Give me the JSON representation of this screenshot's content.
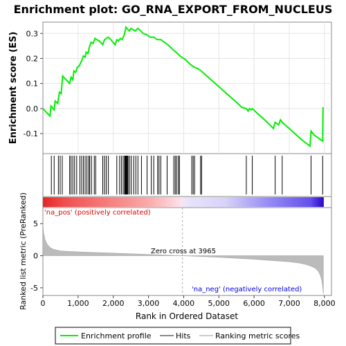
{
  "chart_data": {
    "type": "line",
    "title": "Enrichment plot: GO_RNA_EXPORT_FROM_NUCLEUS",
    "xlabel": "Rank in Ordered Dataset",
    "ylabel_top": "Enrichment score (ES)",
    "ylabel_bottom": "Ranked list metric (PreRanked)",
    "xlim": [
      0,
      8200
    ],
    "x_ticks": [
      0,
      1000,
      2000,
      3000,
      4000,
      5000,
      6000,
      7000,
      8000
    ],
    "x_tick_labels": [
      "0",
      "1,000",
      "2,000",
      "3,000",
      "4,000",
      "5,000",
      "6,000",
      "7,000",
      "8,000"
    ],
    "es_ylim": [
      -0.18,
      0.345
    ],
    "es_ticks": [
      -0.1,
      0.0,
      0.1,
      0.2,
      0.3
    ],
    "es_tick_labels": [
      "-0.1",
      "0.0",
      "0.1",
      "0.2",
      "0.3"
    ],
    "metric_ylim": [
      -6.2,
      7.5
    ],
    "metric_ticks": [
      -5,
      0,
      5
    ],
    "metric_tick_labels": [
      "-5",
      "0",
      "5"
    ],
    "colors": {
      "enrichment_line": "#00ee00",
      "hits": "#000000",
      "metric_fill": "#bbbbbb",
      "zero_line": "#aaaaaa",
      "pos_label": "#dd0000",
      "neg_label": "#0000dd"
    },
    "series": [
      {
        "name": "Enrichment profile",
        "x": [
          0,
          200,
          230,
          320,
          350,
          420,
          470,
          520,
          560,
          760,
          800,
          850,
          880,
          930,
          980,
          1030,
          1100,
          1150,
          1200,
          1230,
          1280,
          1320,
          1370,
          1430,
          1480,
          1530,
          1600,
          1700,
          1750,
          1800,
          1850,
          1900,
          2050,
          2100,
          2150,
          2200,
          2250,
          2300,
          2330,
          2360,
          2390,
          2420,
          2460,
          2500,
          2560,
          2620,
          2700,
          2780,
          2850,
          2950,
          3050,
          3150,
          3250,
          3350,
          3450,
          3550,
          3700,
          3900,
          4050,
          4200,
          4300,
          4400,
          4500,
          4700,
          4900,
          5100,
          5300,
          5500,
          5650,
          5780,
          5830,
          5870,
          5920,
          5950,
          6100,
          6300,
          6450,
          6550,
          6600,
          6700,
          6750,
          6800,
          7000,
          7200,
          7400,
          7590,
          7620,
          7700,
          7850,
          7950,
          7960
        ],
        "y": [
          0.0,
          -0.03,
          0.01,
          -0.005,
          0.03,
          0.02,
          0.065,
          0.06,
          0.13,
          0.1,
          0.125,
          0.115,
          0.15,
          0.145,
          0.165,
          0.17,
          0.19,
          0.21,
          0.205,
          0.225,
          0.22,
          0.245,
          0.265,
          0.26,
          0.28,
          0.275,
          0.27,
          0.255,
          0.275,
          0.28,
          0.285,
          0.28,
          0.255,
          0.275,
          0.27,
          0.28,
          0.275,
          0.29,
          0.305,
          0.325,
          0.32,
          0.315,
          0.31,
          0.32,
          0.315,
          0.31,
          0.32,
          0.31,
          0.3,
          0.295,
          0.285,
          0.285,
          0.275,
          0.275,
          0.265,
          0.255,
          0.235,
          0.21,
          0.195,
          0.175,
          0.165,
          0.16,
          0.15,
          0.125,
          0.1,
          0.075,
          0.05,
          0.025,
          0.005,
          0.0,
          -0.01,
          0.0,
          -0.005,
          0.0,
          -0.02,
          -0.045,
          -0.065,
          -0.08,
          -0.055,
          -0.065,
          -0.045,
          -0.055,
          -0.08,
          -0.105,
          -0.13,
          -0.15,
          -0.09,
          -0.105,
          -0.12,
          -0.13,
          0.005
        ]
      }
    ],
    "hits": [
      240,
      320,
      440,
      490,
      550,
      760,
      800,
      850,
      900,
      960,
      1050,
      1100,
      1150,
      1200,
      1250,
      1300,
      1330,
      1380,
      1460,
      1500,
      1700,
      1750,
      1800,
      1860,
      2100,
      2180,
      2230,
      2280,
      2320,
      2340,
      2360,
      2380,
      2400,
      2420,
      2460,
      2510,
      2580,
      2640,
      2700,
      2800,
      2960,
      3080,
      3150,
      3260,
      3300,
      3350,
      3530,
      3720,
      3760,
      3800,
      3850,
      3880,
      4230,
      4270,
      4310,
      4480,
      4510,
      5780,
      5950,
      6600,
      6800,
      7620,
      7950
    ],
    "hits_label": "Hits",
    "ranking_label": "Ranking metric scores",
    "zero_cross_label": "Zero cross at 3965",
    "zero_cross": 3965,
    "pos_label": "'na_pos' (positively correlated)",
    "neg_label": "'na_neg' (negatively correlated)",
    "metric_profile": {
      "x": [
        0,
        20,
        60,
        120,
        200,
        300,
        500,
        800,
        1200,
        2000,
        3000,
        3965,
        5000,
        6000,
        6500,
        7000,
        7300,
        7500,
        7650,
        7750,
        7820,
        7880,
        7920,
        7950,
        7970
      ],
      "y": [
        5.0,
        3.6,
        2.5,
        1.8,
        1.3,
        1.0,
        0.75,
        0.65,
        0.55,
        0.4,
        0.2,
        0.0,
        -0.25,
        -0.55,
        -0.75,
        -0.95,
        -1.15,
        -1.4,
        -1.7,
        -2.0,
        -2.4,
        -3.0,
        -3.8,
        -4.8,
        -6.0
      ]
    },
    "legend": {
      "placement": "bottom",
      "entries": [
        "Enrichment profile",
        "Hits",
        "Ranking metric scores"
      ]
    }
  }
}
